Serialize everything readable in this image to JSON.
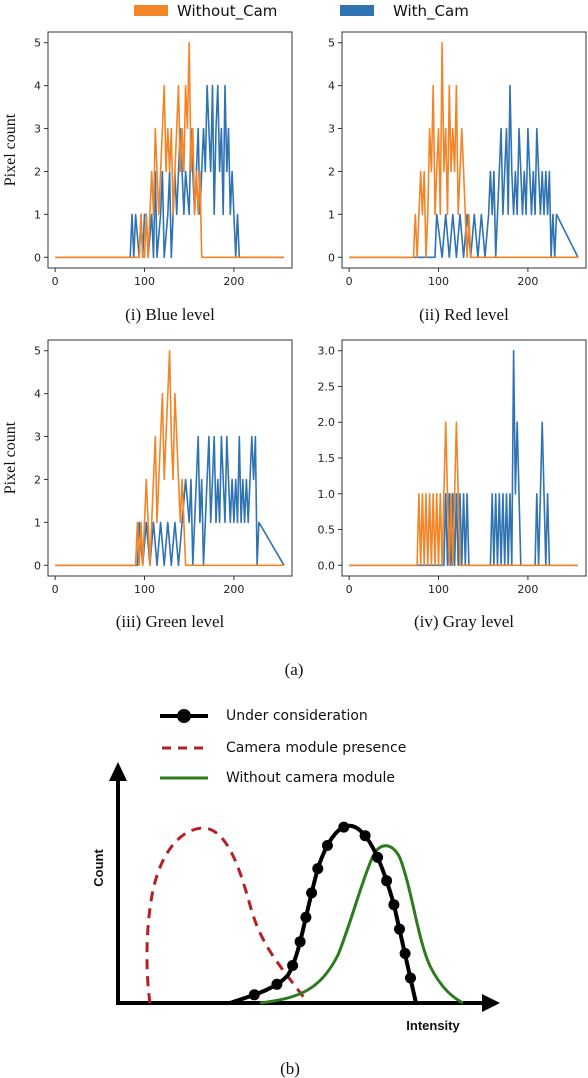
{
  "colors": {
    "without_cam": "#f28527",
    "with_cam": "#2f73b3",
    "under_consideration": "#000000",
    "camera_module_presence": "#b52025",
    "without_camera_module": "#2e7a1e"
  },
  "legend_top": {
    "without_cam": "Without_Cam",
    "with_cam": "With_Cam"
  },
  "figure_a_label": "(a)",
  "figure_b_label": "(b)",
  "chart_data": [
    {
      "type": "line",
      "caption": "(i) Blue level",
      "ylabel": "Pixel count",
      "xlim": [
        -8,
        265
      ],
      "ylim": [
        -0.25,
        5.25
      ],
      "xticks": [
        0,
        100,
        200
      ],
      "yticks": [
        0,
        1,
        2,
        3,
        4,
        5
      ],
      "series": [
        {
          "name": "With_Cam",
          "x": [
            0,
            84,
            86,
            88,
            90,
            94,
            96,
            98,
            100,
            102,
            104,
            108,
            110,
            112,
            114,
            118,
            120,
            122,
            126,
            128,
            130,
            134,
            136,
            140,
            142,
            144,
            146,
            150,
            152,
            154,
            156,
            158,
            160,
            162,
            164,
            166,
            168,
            170,
            172,
            174,
            176,
            178,
            180,
            182,
            184,
            186,
            188,
            190,
            192,
            194,
            196,
            198,
            200,
            202,
            204,
            206,
            256
          ],
          "y": [
            0,
            0,
            1,
            0,
            1,
            0,
            1,
            0,
            1,
            1,
            0,
            1,
            0,
            2,
            0,
            1,
            2,
            0,
            1,
            2,
            0,
            2,
            1,
            3,
            2,
            1,
            2,
            1,
            3,
            2,
            1,
            2,
            3,
            1,
            2,
            3,
            2,
            4,
            3,
            2,
            4,
            1,
            3,
            4,
            2,
            3,
            1,
            4,
            2,
            3,
            1,
            2,
            1,
            0,
            1,
            0,
            0
          ]
        },
        {
          "name": "Without_Cam",
          "x": [
            0,
            94,
            96,
            98,
            100,
            102,
            104,
            106,
            108,
            110,
            112,
            114,
            116,
            118,
            120,
            122,
            124,
            126,
            128,
            130,
            132,
            134,
            136,
            138,
            140,
            142,
            144,
            146,
            148,
            150,
            152,
            154,
            156,
            158,
            160,
            162,
            164,
            166,
            256
          ],
          "y": [
            0,
            0,
            1,
            0,
            0,
            1,
            0,
            1,
            2,
            1,
            3,
            2,
            1,
            2,
            3,
            4,
            2,
            3,
            2,
            3,
            1,
            2,
            3,
            4,
            2,
            3,
            2,
            4,
            3,
            5,
            2,
            3,
            1,
            2,
            1,
            2,
            0,
            0,
            0
          ]
        }
      ]
    },
    {
      "type": "line",
      "caption": "(ii) Red level",
      "ylabel": "",
      "xlim": [
        -8,
        265
      ],
      "ylim": [
        -0.25,
        5.25
      ],
      "xticks": [
        0,
        100,
        200
      ],
      "yticks": [
        0,
        1,
        2,
        3,
        4,
        5
      ],
      "series": [
        {
          "name": "With_Cam",
          "x": [
            0,
            96,
            98,
            104,
            108,
            112,
            116,
            120,
            124,
            128,
            132,
            136,
            140,
            144,
            148,
            152,
            156,
            158,
            160,
            162,
            164,
            166,
            168,
            170,
            172,
            174,
            176,
            178,
            180,
            182,
            184,
            186,
            188,
            190,
            192,
            194,
            196,
            198,
            200,
            202,
            204,
            206,
            208,
            210,
            212,
            214,
            216,
            218,
            220,
            222,
            224,
            226,
            228,
            230,
            232,
            256
          ],
          "y": [
            0,
            0,
            1,
            0,
            1,
            0,
            1,
            0,
            1,
            0,
            1,
            0,
            1,
            0,
            1,
            0,
            1,
            2,
            1,
            2,
            0,
            1,
            2,
            3,
            1,
            2,
            3,
            1,
            4,
            2,
            1,
            2,
            1,
            3,
            2,
            1,
            2,
            1,
            3,
            2,
            1,
            2,
            1,
            3,
            2,
            1,
            2,
            1,
            2,
            1,
            2,
            0,
            1,
            0,
            1,
            0
          ]
        },
        {
          "name": "Without_Cam",
          "x": [
            0,
            72,
            74,
            76,
            78,
            80,
            82,
            84,
            86,
            88,
            90,
            92,
            94,
            96,
            98,
            100,
            102,
            104,
            106,
            108,
            110,
            112,
            114,
            116,
            118,
            120,
            122,
            124,
            126,
            128,
            130,
            132,
            134,
            136,
            256
          ],
          "y": [
            0,
            0,
            1,
            0,
            1,
            2,
            1,
            2,
            0,
            1,
            3,
            2,
            4,
            1,
            2,
            3,
            1,
            5,
            2,
            3,
            1,
            4,
            2,
            3,
            2,
            4,
            1,
            2,
            3,
            2,
            1,
            0,
            1,
            0,
            0
          ]
        }
      ]
    },
    {
      "type": "line",
      "caption": "(iii) Green level",
      "ylabel": "Pixel count",
      "xlim": [
        -8,
        265
      ],
      "ylim": [
        -0.25,
        5.25
      ],
      "xticks": [
        0,
        100,
        200
      ],
      "yticks": [
        0,
        1,
        2,
        3,
        4,
        5
      ],
      "series": [
        {
          "name": "With_Cam",
          "x": [
            0,
            92,
            94,
            98,
            102,
            106,
            110,
            114,
            118,
            122,
            126,
            130,
            134,
            138,
            142,
            146,
            150,
            152,
            154,
            156,
            158,
            160,
            162,
            164,
            166,
            168,
            170,
            172,
            174,
            176,
            178,
            180,
            182,
            184,
            186,
            188,
            190,
            192,
            194,
            196,
            198,
            200,
            202,
            204,
            206,
            208,
            210,
            212,
            214,
            216,
            218,
            220,
            222,
            224,
            226,
            228,
            256
          ],
          "y": [
            0,
            0,
            1,
            0,
            1,
            0,
            1,
            0,
            1,
            0,
            1,
            0,
            1,
            0,
            1,
            2,
            1,
            2,
            0,
            1,
            2,
            3,
            1,
            2,
            0,
            1,
            2,
            3,
            1,
            2,
            3,
            1,
            2,
            1,
            3,
            2,
            1,
            3,
            2,
            1,
            2,
            1,
            2,
            1,
            3,
            1,
            2,
            1,
            2,
            1,
            2,
            3,
            2,
            3,
            0,
            1,
            0
          ]
        },
        {
          "name": "Without_Cam",
          "x": [
            0,
            90,
            92,
            94,
            96,
            98,
            100,
            102,
            104,
            106,
            108,
            110,
            112,
            114,
            116,
            118,
            120,
            122,
            124,
            126,
            128,
            130,
            132,
            134,
            136,
            138,
            140,
            142,
            144,
            146,
            148,
            256
          ],
          "y": [
            0,
            0,
            1,
            0,
            1,
            0,
            1,
            2,
            1,
            0,
            1,
            2,
            3,
            1,
            2,
            3,
            4,
            2,
            3,
            4,
            5,
            3,
            2,
            4,
            3,
            2,
            1,
            2,
            1,
            0,
            0,
            0
          ]
        }
      ]
    },
    {
      "type": "line",
      "caption": "(iv) Gray level",
      "ylabel": "",
      "xlim": [
        -8,
        265
      ],
      "ylim": [
        -0.15,
        3.15
      ],
      "xticks": [
        0,
        100,
        200
      ],
      "yticks": [
        0.0,
        0.5,
        1.0,
        1.5,
        2.0,
        2.5,
        3.0
      ],
      "ytick_labels": [
        "0.0",
        "0.5",
        "1.0",
        "1.5",
        "2.0",
        "2.5",
        "3.0"
      ],
      "series": [
        {
          "name": "With_Cam",
          "x": [
            0,
            106,
            108,
            110,
            112,
            114,
            116,
            118,
            120,
            122,
            124,
            126,
            128,
            130,
            132,
            134,
            158,
            160,
            162,
            164,
            166,
            168,
            170,
            172,
            174,
            176,
            178,
            180,
            182,
            184,
            186,
            188,
            190,
            192,
            208,
            210,
            212,
            214,
            216,
            218,
            220,
            222,
            224,
            226,
            256
          ],
          "y": [
            0,
            0,
            1,
            0,
            1,
            0,
            1,
            0,
            1,
            0,
            1,
            0,
            1,
            0,
            1,
            0,
            0,
            1,
            0,
            1,
            0,
            1,
            0,
            1,
            0,
            1,
            0,
            1,
            0,
            3,
            1,
            2,
            1,
            0,
            0,
            1,
            0,
            1,
            2,
            1,
            0,
            1,
            0,
            0,
            0
          ]
        },
        {
          "name": "Without_Cam",
          "x": [
            0,
            76,
            78,
            80,
            82,
            84,
            86,
            88,
            90,
            92,
            94,
            96,
            98,
            100,
            102,
            104,
            106,
            108,
            110,
            112,
            114,
            116,
            118,
            120,
            122,
            124,
            256
          ],
          "y": [
            0,
            0,
            1,
            0,
            1,
            0,
            1,
            0,
            1,
            0,
            1,
            0,
            1,
            0,
            1,
            0,
            1,
            2,
            1,
            0,
            1,
            0,
            1,
            2,
            1,
            0,
            0
          ]
        }
      ]
    }
  ],
  "schematic": {
    "xlabel": "Intensity",
    "ylabel": "Count",
    "legend": [
      {
        "label": "Under consideration",
        "style": "solid-dots"
      },
      {
        "label": "Camera module presence",
        "style": "dashed"
      },
      {
        "label": "Without camera module",
        "style": "solid"
      }
    ]
  }
}
